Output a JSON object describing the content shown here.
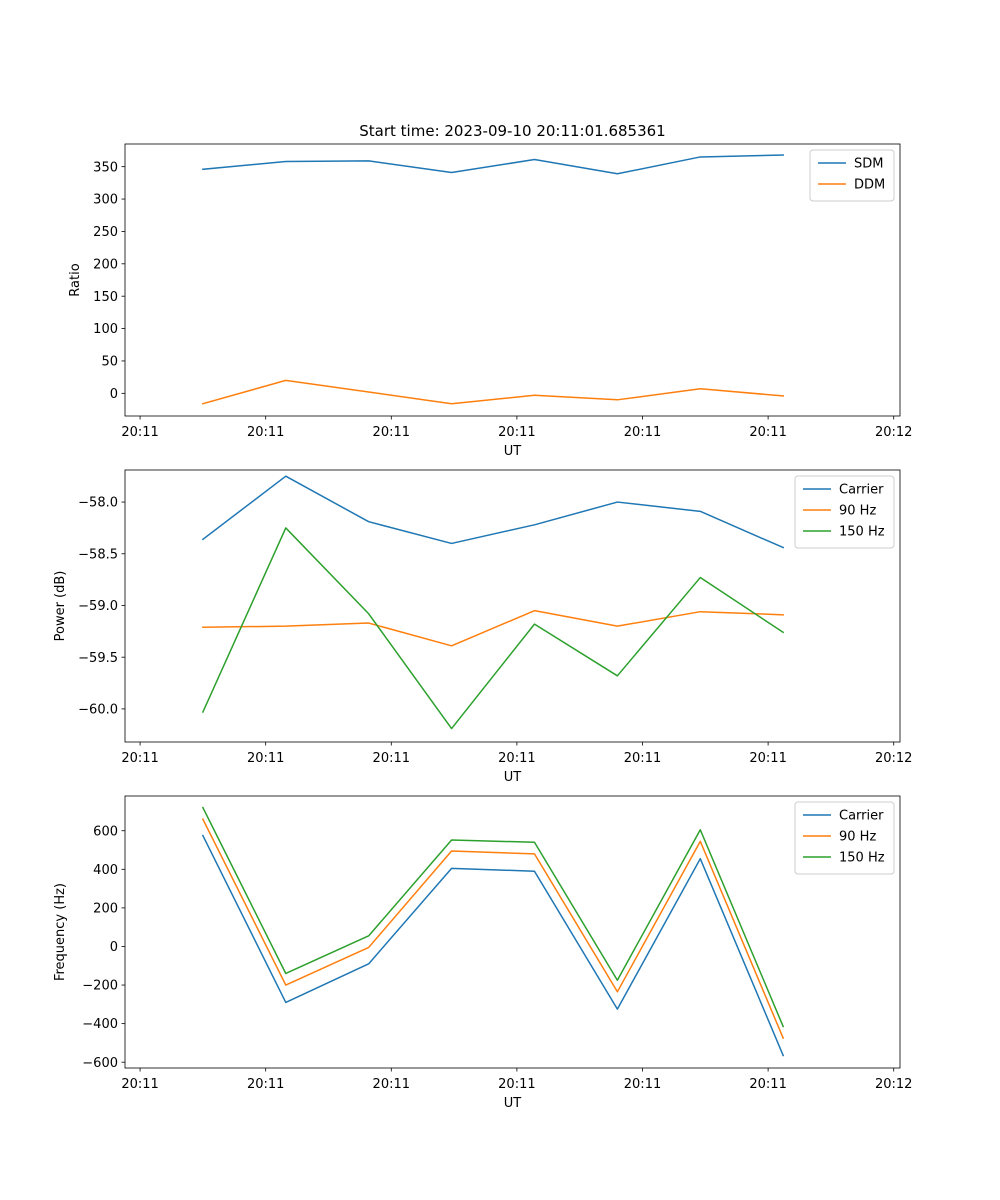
{
  "figure": {
    "title": "Start time: 2023-09-10 20:11:01.685361"
  },
  "chart_data": [
    {
      "type": "line",
      "title": "Start time: 2023-09-10 20:11:01.685361",
      "xlabel": "UT",
      "ylabel": "Ratio",
      "x_tick_labels": [
        "20:11",
        "20:11",
        "20:11",
        "20:11",
        "20:11",
        "20:11",
        "20:12"
      ],
      "xlim": [
        -0.12,
        6.05
      ],
      "x_ticks": [
        0,
        1,
        2,
        3,
        4,
        5,
        6
      ],
      "x": [
        0.5,
        1.16,
        1.82,
        2.48,
        3.14,
        3.8,
        4.46,
        5.12
      ],
      "ylim": [
        -35,
        385
      ],
      "y_ticks": [
        0,
        50,
        100,
        150,
        200,
        250,
        300,
        350
      ],
      "legend": "top-right",
      "series": [
        {
          "name": "SDM",
          "color": "#1f77b4",
          "values": [
            346,
            358,
            359,
            341,
            361,
            339,
            365,
            368
          ]
        },
        {
          "name": "DDM",
          "color": "#ff7f0e",
          "values": [
            -16,
            20,
            2,
            -16,
            -3,
            -10,
            7,
            -4
          ]
        }
      ]
    },
    {
      "type": "line",
      "title": "",
      "xlabel": "UT",
      "ylabel": "Power (dB)",
      "x_tick_labels": [
        "20:11",
        "20:11",
        "20:11",
        "20:11",
        "20:11",
        "20:11",
        "20:12"
      ],
      "xlim": [
        -0.12,
        6.05
      ],
      "x_ticks": [
        0,
        1,
        2,
        3,
        4,
        5,
        6
      ],
      "x": [
        0.5,
        1.16,
        1.82,
        2.48,
        3.14,
        3.8,
        4.46,
        5.12
      ],
      "ylim": [
        -60.32,
        -57.69
      ],
      "y_ticks": [
        -60.0,
        -59.5,
        -59.0,
        -58.5,
        -58.0
      ],
      "y_tick_labels": [
        "−60.0",
        "−59.5",
        "−59.0",
        "−58.5",
        "−58.0"
      ],
      "legend": "top-right",
      "series": [
        {
          "name": "Carrier",
          "color": "#1f77b4",
          "values": [
            -58.36,
            -57.75,
            -58.19,
            -58.4,
            -58.22,
            -58.0,
            -58.09,
            -58.44
          ]
        },
        {
          "name": "90 Hz",
          "color": "#ff7f0e",
          "values": [
            -59.21,
            -59.2,
            -59.17,
            -59.39,
            -59.05,
            -59.2,
            -59.06,
            -59.09
          ]
        },
        {
          "name": "150 Hz",
          "color": "#2ca02c",
          "values": [
            -60.03,
            -58.25,
            -59.08,
            -60.19,
            -59.18,
            -59.68,
            -58.73,
            -59.26
          ]
        }
      ]
    },
    {
      "type": "line",
      "title": "",
      "xlabel": "UT",
      "ylabel": "Frequency (Hz)",
      "x_tick_labels": [
        "20:11",
        "20:11",
        "20:11",
        "20:11",
        "20:11",
        "20:11",
        "20:12"
      ],
      "xlim": [
        -0.12,
        6.05
      ],
      "x_ticks": [
        0,
        1,
        2,
        3,
        4,
        5,
        6
      ],
      "x": [
        0.5,
        1.16,
        1.82,
        2.48,
        3.14,
        3.8,
        4.46,
        5.12
      ],
      "ylim": [
        -630,
        780
      ],
      "y_ticks": [
        -600,
        -400,
        -200,
        0,
        200,
        400,
        600
      ],
      "y_tick_labels": [
        "−600",
        "−400",
        "−200",
        "0",
        "200",
        "400",
        "600"
      ],
      "legend": "top-right",
      "series": [
        {
          "name": "Carrier",
          "color": "#1f77b4",
          "values": [
            575,
            -290,
            -90,
            405,
            390,
            -325,
            455,
            -565
          ]
        },
        {
          "name": "90 Hz",
          "color": "#ff7f0e",
          "values": [
            660,
            -200,
            -5,
            495,
            480,
            -235,
            545,
            -475
          ]
        },
        {
          "name": "150 Hz",
          "color": "#2ca02c",
          "values": [
            720,
            -140,
            55,
            552,
            540,
            -175,
            605,
            -415
          ]
        }
      ]
    }
  ]
}
